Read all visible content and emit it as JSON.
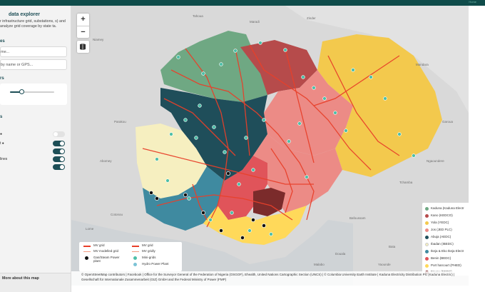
{
  "app": {
    "title": "data explorer",
    "description": "r infrastructure grid, substations, s) and analyze grid coverage by state ta.",
    "top_link": "Home"
  },
  "sidebar": {
    "section_search": "es",
    "search_state": {
      "value": "me..."
    },
    "search_gps": {
      "value": "by name or GPS..."
    },
    "section_filters": "rs",
    "slider": {
      "value_percent": 25
    },
    "section_layers": "s",
    "layers": [
      {
        "label": "",
        "on": false
      },
      {
        "label": "t",
        "on": true
      },
      {
        "label": "",
        "on": true
      },
      {
        "label": "lines",
        "on": true
      },
      {
        "label": "",
        "on": true
      }
    ],
    "footer_link": "More about this map"
  },
  "map": {
    "zoom_in": "+",
    "zoom_out": "−",
    "layers_icon": "layers-icon",
    "colors": {
      "land": "#d9d9d9",
      "ocean": "#cfd2d4",
      "grid_line": "#e8402a",
      "dot": "#4dbfa8"
    },
    "legend": {
      "items": [
        {
          "label": "MV grid"
        },
        {
          "label": "MV grid"
        },
        {
          "label": "MV modelled grid"
        },
        {
          "label": "MV gridly"
        },
        {
          "label": "Gas/Steam Power plant"
        },
        {
          "label": "Mini-grids"
        },
        {
          "label": "Hydro Power Plant"
        }
      ]
    },
    "disco_legend": [
      {
        "label": "Kaduna (Kaduna Electr",
        "color": "#6fa883"
      },
      {
        "label": "Kano (KEDCO)",
        "color": "#b64b4b"
      },
      {
        "label": "Yola (YEDC)",
        "color": "#f3c94d"
      },
      {
        "label": "Jos (JED PLC)",
        "color": "#ec8b86"
      },
      {
        "label": "Abuja (AEDC)",
        "color": "#1f4e5a"
      },
      {
        "label": "Ibadan (IBEDC)",
        "color": "#f6efc0"
      },
      {
        "label": "Ikeja & Eko Ikeja Electr",
        "color": "#3f8aa0"
      },
      {
        "label": "Benin (BEDC)",
        "color": "#e0545a"
      },
      {
        "label": "Port harcourt (PHED)",
        "color": "#ffd95a"
      },
      {
        "label": "Enugu (EEDC)",
        "color": "#7b2b2b"
      }
    ],
    "place_labels": [
      {
        "text": "Mandara"
      },
      {
        "text": "Ngaoundere"
      },
      {
        "text": "Garoua"
      },
      {
        "text": "Tchamba"
      },
      {
        "text": "Bafoussam"
      },
      {
        "text": "Douala"
      },
      {
        "text": "Yaounde"
      },
      {
        "text": "Kribi"
      },
      {
        "text": "Abomey"
      },
      {
        "text": "Cotonou"
      },
      {
        "text": "Parakou"
      },
      {
        "text": "Niamey"
      },
      {
        "text": "Maradi"
      },
      {
        "text": "Zinder"
      },
      {
        "text": "Tahoua"
      },
      {
        "text": "Malabo"
      },
      {
        "text": "Bata"
      },
      {
        "text": "Lome"
      }
    ],
    "attribution": "© OpenStreetMap contributors | Facebook | Office for the Surveyor General of the Federation of Nigeria (OSGOF), Ehealth, United Nations Cartographic Section (UNCS) | © Columbia University Earth Institute | Kaduna Electricity Distribution Plc (Kaduna Electric) | Gesellschaft für Internationale Zusammenarbeit (GIZ) GmbH and the Federal Ministry of Power (FMP)"
  }
}
